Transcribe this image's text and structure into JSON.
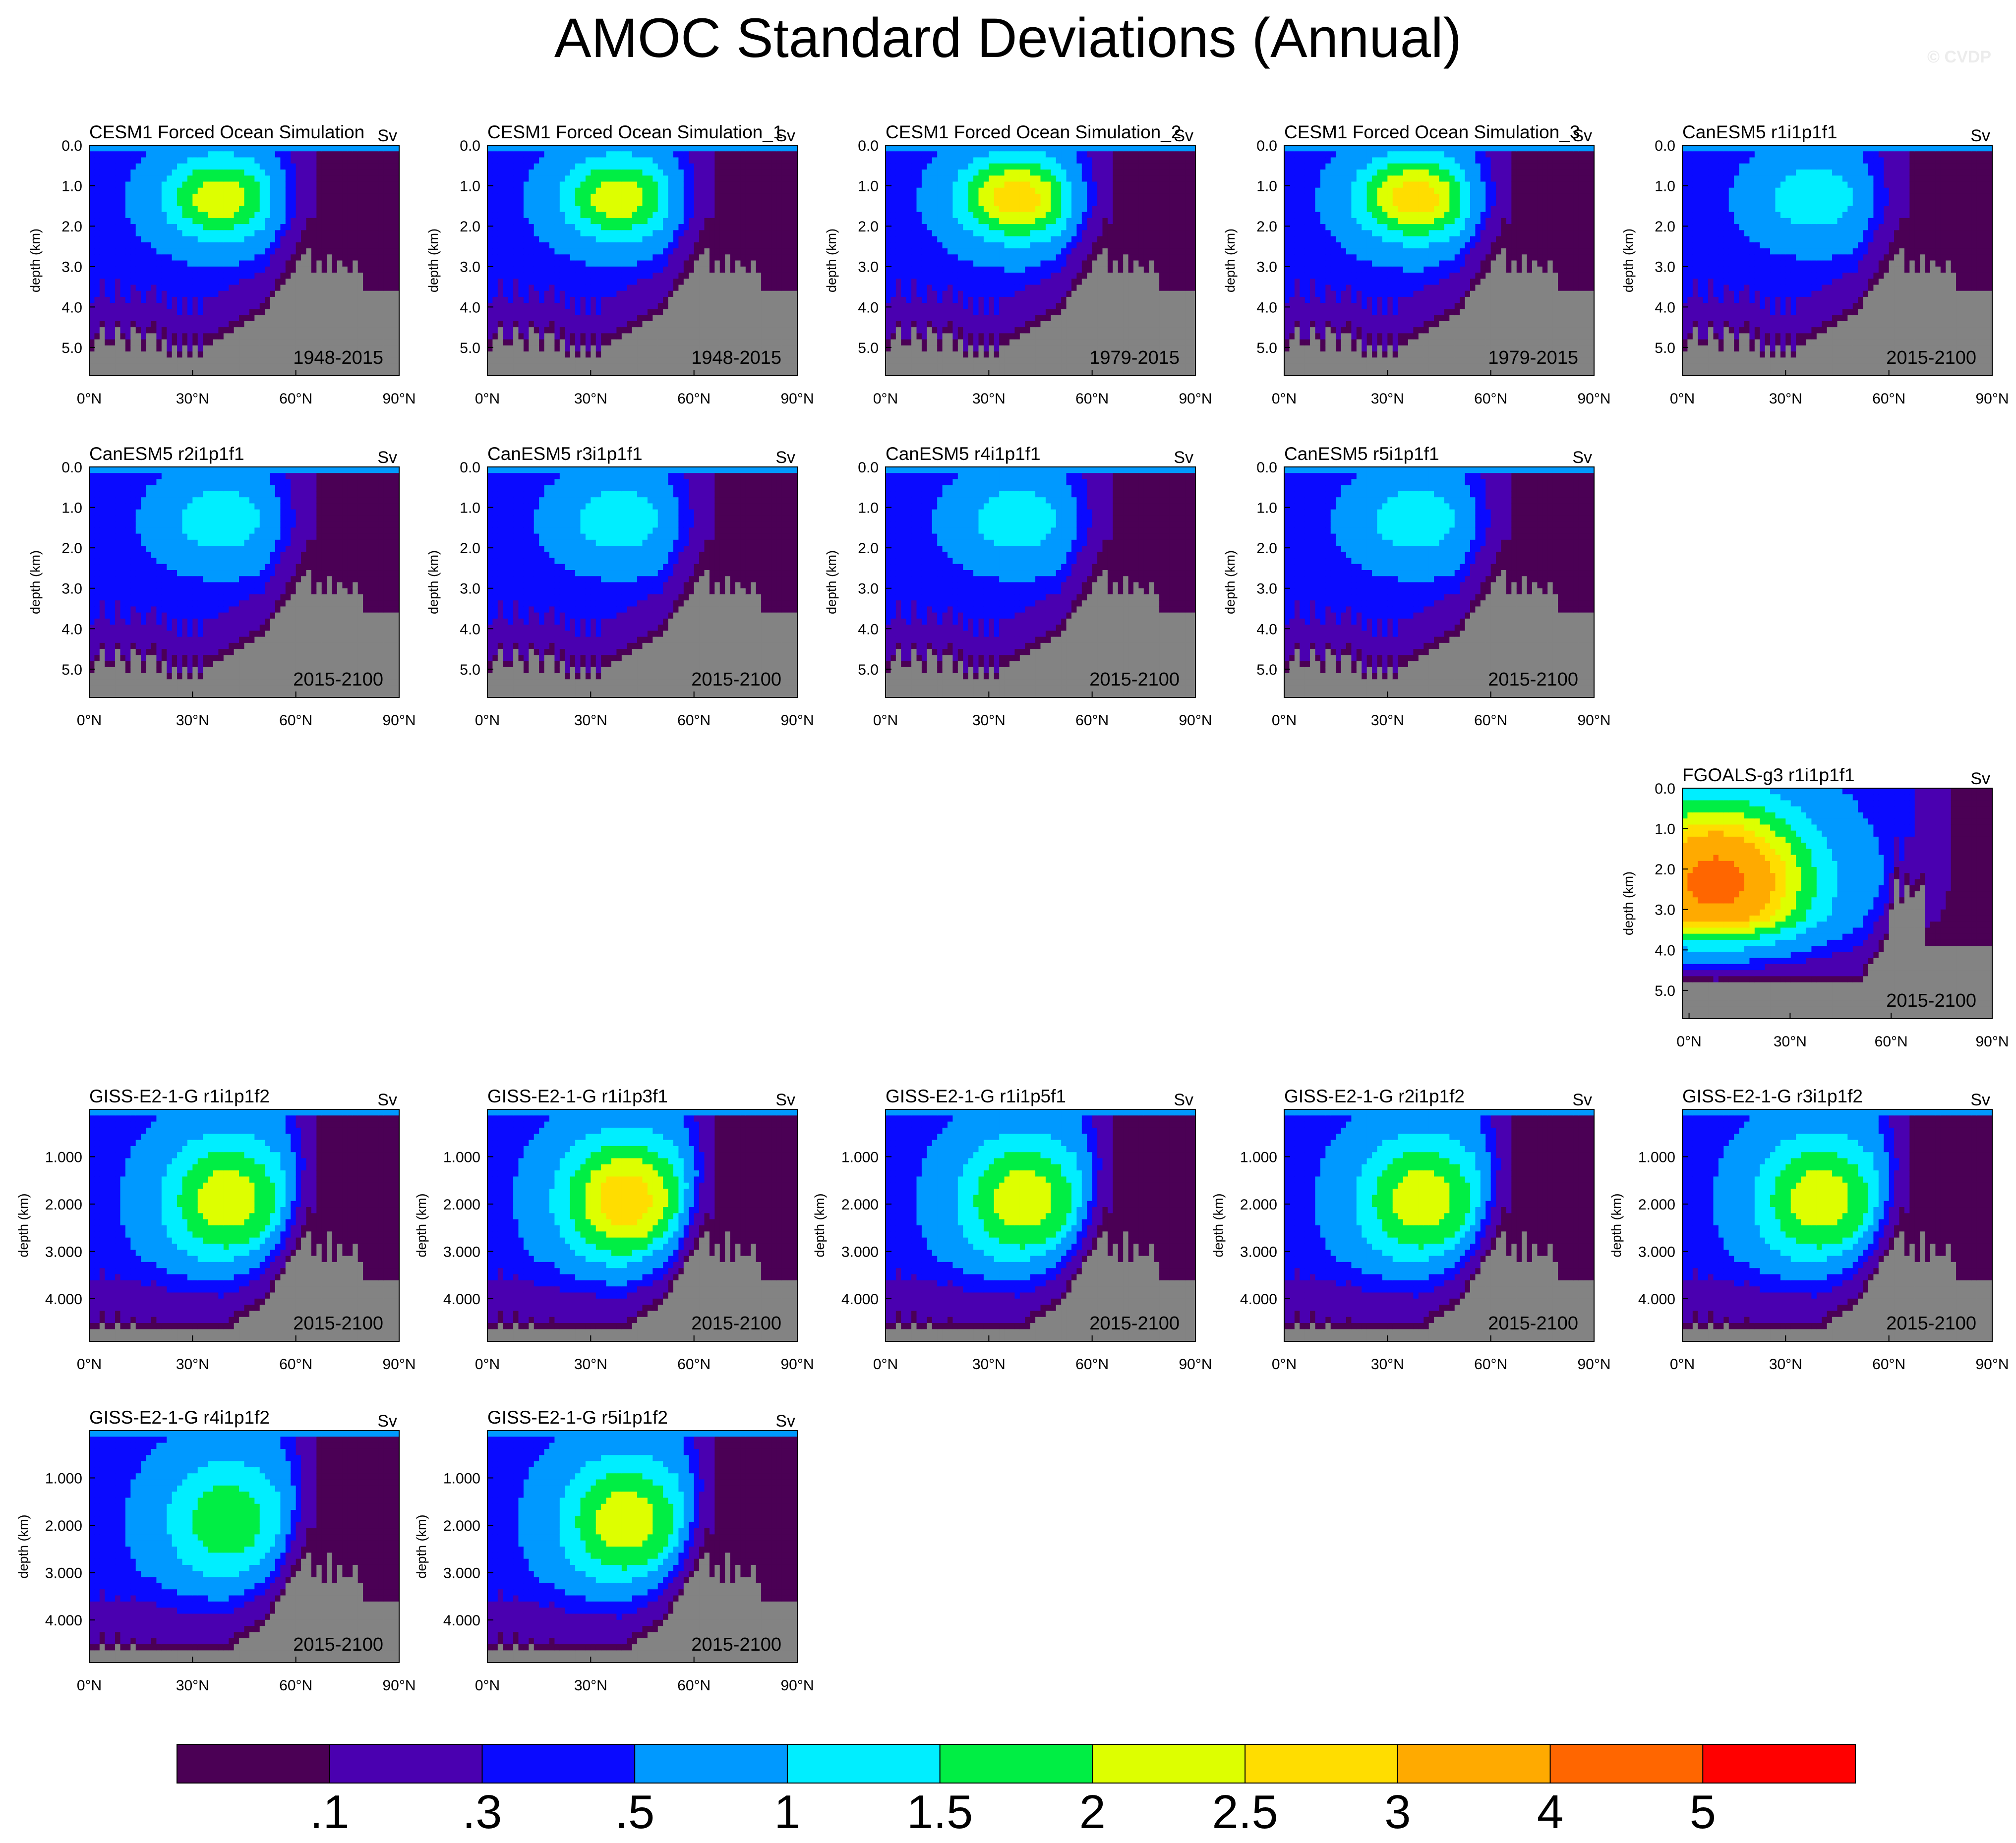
{
  "figure": {
    "title": "AMOC Standard Deviations (Annual)",
    "copyright": "© CVDP"
  },
  "colors": {
    "palette": [
      "#4b0055",
      "#4a00b0",
      "#0a0aff",
      "#0099ff",
      "#00eeff",
      "#00ee44",
      "#ddff00",
      "#ffdd00",
      "#ffaa00",
      "#ff6600",
      "#ff0000"
    ],
    "bathymetry": "#838383",
    "axis": "#000000"
  },
  "colorbar": {
    "labels": [
      ".1",
      ".3",
      ".5",
      "1",
      "1.5",
      "2",
      "2.5",
      "3",
      "4",
      "5"
    ]
  },
  "chart_data": [
    {
      "type": "heatmap",
      "title": "CESM1 Forced Ocean Simulation",
      "units": "Sv",
      "period": "1948-2015",
      "ylabel": "depth (km)",
      "ylim": [
        0,
        5.7
      ],
      "yticks": [
        "0.0",
        "1.0",
        "2.0",
        "3.0",
        "4.0",
        "5.0"
      ],
      "xticks": [
        "0°N",
        "30°N",
        "60°N",
        "90°N"
      ],
      "xlim": [
        0,
        90
      ],
      "max_std": 2.0
    },
    {
      "type": "heatmap",
      "title": "CESM1 Forced Ocean Simulation_1",
      "units": "Sv",
      "period": "1948-2015",
      "ylabel": "depth (km)",
      "ylim": [
        0,
        5.7
      ],
      "yticks": [
        "0.0",
        "1.0",
        "2.0",
        "3.0",
        "4.0",
        "5.0"
      ],
      "xticks": [
        "0°N",
        "30°N",
        "60°N",
        "90°N"
      ],
      "xlim": [
        0,
        90
      ],
      "max_std": 2.0
    },
    {
      "type": "heatmap",
      "title": "CESM1 Forced Ocean Simulation_2",
      "units": "Sv",
      "period": "1979-2015",
      "ylabel": "depth (km)",
      "ylim": [
        0,
        5.7
      ],
      "yticks": [
        "0.0",
        "1.0",
        "2.0",
        "3.0",
        "4.0",
        "5.0"
      ],
      "xticks": [
        "0°N",
        "30°N",
        "60°N",
        "90°N"
      ],
      "xlim": [
        0,
        90
      ],
      "max_std": 2.5
    },
    {
      "type": "heatmap",
      "title": "CESM1 Forced Ocean Simulation_3",
      "units": "Sv",
      "period": "1979-2015",
      "ylabel": "depth (km)",
      "ylim": [
        0,
        5.7
      ],
      "yticks": [
        "0.0",
        "1.0",
        "2.0",
        "3.0",
        "4.0",
        "5.0"
      ],
      "xticks": [
        "0°N",
        "30°N",
        "60°N",
        "90°N"
      ],
      "xlim": [
        0,
        90
      ],
      "max_std": 2.5
    },
    {
      "type": "heatmap",
      "title": "CanESM5 r1i1p1f1",
      "units": "Sv",
      "period": "2015-2100",
      "ylabel": "depth (km)",
      "ylim": [
        0,
        5.7
      ],
      "yticks": [
        "0.0",
        "1.0",
        "2.0",
        "3.0",
        "4.0",
        "5.0"
      ],
      "xticks": [
        "0°N",
        "30°N",
        "60°N",
        "90°N"
      ],
      "xlim": [
        0,
        90
      ],
      "max_std": 1.0
    },
    {
      "type": "heatmap",
      "title": "CanESM5 r2i1p1f1",
      "units": "Sv",
      "period": "2015-2100",
      "ylabel": "depth (km)",
      "ylim": [
        0,
        5.7
      ],
      "yticks": [
        "0.0",
        "1.0",
        "2.0",
        "3.0",
        "4.0",
        "5.0"
      ],
      "xticks": [
        "0°N",
        "30°N",
        "60°N",
        "90°N"
      ],
      "xlim": [
        0,
        90
      ],
      "max_std": 1.0
    },
    {
      "type": "heatmap",
      "title": "CanESM5 r3i1p1f1",
      "units": "Sv",
      "period": "2015-2100",
      "ylabel": "depth (km)",
      "ylim": [
        0,
        5.7
      ],
      "yticks": [
        "0.0",
        "1.0",
        "2.0",
        "3.0",
        "4.0",
        "5.0"
      ],
      "xticks": [
        "0°N",
        "30°N",
        "60°N",
        "90°N"
      ],
      "xlim": [
        0,
        90
      ],
      "max_std": 1.0
    },
    {
      "type": "heatmap",
      "title": "CanESM5 r4i1p1f1",
      "units": "Sv",
      "period": "2015-2100",
      "ylabel": "depth (km)",
      "ylim": [
        0,
        5.7
      ],
      "yticks": [
        "0.0",
        "1.0",
        "2.0",
        "3.0",
        "4.0",
        "5.0"
      ],
      "xticks": [
        "0°N",
        "30°N",
        "60°N",
        "90°N"
      ],
      "xlim": [
        0,
        90
      ],
      "max_std": 1.0
    },
    {
      "type": "heatmap",
      "title": "CanESM5 r5i1p1f1",
      "units": "Sv",
      "period": "2015-2100",
      "ylabel": "depth (km)",
      "ylim": [
        0,
        5.7
      ],
      "yticks": [
        "0.0",
        "1.0",
        "2.0",
        "3.0",
        "4.0",
        "5.0"
      ],
      "xticks": [
        "0°N",
        "30°N",
        "60°N",
        "90°N"
      ],
      "xlim": [
        0,
        90
      ],
      "max_std": 1.0
    },
    {
      "type": "heatmap",
      "title": "FGOALS-g3 r1i1p1f1",
      "units": "Sv",
      "period": "2015-2100",
      "ylabel": "depth (km)",
      "ylim": [
        0,
        5.7
      ],
      "yticks": [
        "0.0",
        "1.0",
        "2.0",
        "3.0",
        "4.0",
        "5.0"
      ],
      "xticks": [
        "0°N",
        "30°N",
        "60°N",
        "90°N"
      ],
      "xlim": [
        -2,
        90
      ],
      "max_std": 4.0
    },
    {
      "type": "heatmap",
      "title": "GISS-E2-1-G r1i1p1f2",
      "units": "Sv",
      "period": "2015-2100",
      "ylabel": "depth (km)",
      "ylim": [
        0,
        4.9
      ],
      "yticks": [
        "1.000",
        "2.000",
        "3.000",
        "4.000"
      ],
      "xticks": [
        "0°N",
        "30°N",
        "60°N",
        "90°N"
      ],
      "xlim": [
        0,
        90
      ],
      "max_std": 2.0
    },
    {
      "type": "heatmap",
      "title": "GISS-E2-1-G r1i1p3f1",
      "units": "Sv",
      "period": "2015-2100",
      "ylabel": "depth (km)",
      "ylim": [
        0,
        4.9
      ],
      "yticks": [
        "1.000",
        "2.000",
        "3.000",
        "4.000"
      ],
      "xticks": [
        "0°N",
        "30°N",
        "60°N",
        "90°N"
      ],
      "xlim": [
        0,
        90
      ],
      "max_std": 2.5
    },
    {
      "type": "heatmap",
      "title": "GISS-E2-1-G r1i1p5f1",
      "units": "Sv",
      "period": "2015-2100",
      "ylabel": "depth (km)",
      "ylim": [
        0,
        4.9
      ],
      "yticks": [
        "1.000",
        "2.000",
        "3.000",
        "4.000"
      ],
      "xticks": [
        "0°N",
        "30°N",
        "60°N",
        "90°N"
      ],
      "xlim": [
        0,
        90
      ],
      "max_std": 2.0
    },
    {
      "type": "heatmap",
      "title": "GISS-E2-1-G r2i1p1f2",
      "units": "Sv",
      "period": "2015-2100",
      "ylabel": "depth (km)",
      "ylim": [
        0,
        4.9
      ],
      "yticks": [
        "1.000",
        "2.000",
        "3.000",
        "4.000"
      ],
      "xticks": [
        "0°N",
        "30°N",
        "60°N",
        "90°N"
      ],
      "xlim": [
        0,
        90
      ],
      "max_std": 2.0
    },
    {
      "type": "heatmap",
      "title": "GISS-E2-1-G r3i1p1f2",
      "units": "Sv",
      "period": "2015-2100",
      "ylabel": "depth (km)",
      "ylim": [
        0,
        4.9
      ],
      "yticks": [
        "1.000",
        "2.000",
        "3.000",
        "4.000"
      ],
      "xticks": [
        "0°N",
        "30°N",
        "60°N",
        "90°N"
      ],
      "xlim": [
        0,
        90
      ],
      "max_std": 2.0
    },
    {
      "type": "heatmap",
      "title": "GISS-E2-1-G r4i1p1f2",
      "units": "Sv",
      "period": "2015-2100",
      "ylabel": "depth (km)",
      "ylim": [
        0,
        4.9
      ],
      "yticks": [
        "1.000",
        "2.000",
        "3.000",
        "4.000"
      ],
      "xticks": [
        "0°N",
        "30°N",
        "60°N",
        "90°N"
      ],
      "xlim": [
        0,
        90
      ],
      "max_std": 1.5
    },
    {
      "type": "heatmap",
      "title": "GISS-E2-1-G r5i1p1f2",
      "units": "Sv",
      "period": "2015-2100",
      "ylabel": "depth (km)",
      "ylim": [
        0,
        4.9
      ],
      "yticks": [
        "1.000",
        "2.000",
        "3.000",
        "4.000"
      ],
      "xticks": [
        "0°N",
        "30°N",
        "60°N",
        "90°N"
      ],
      "xlim": [
        0,
        90
      ],
      "max_std": 2.0
    }
  ]
}
